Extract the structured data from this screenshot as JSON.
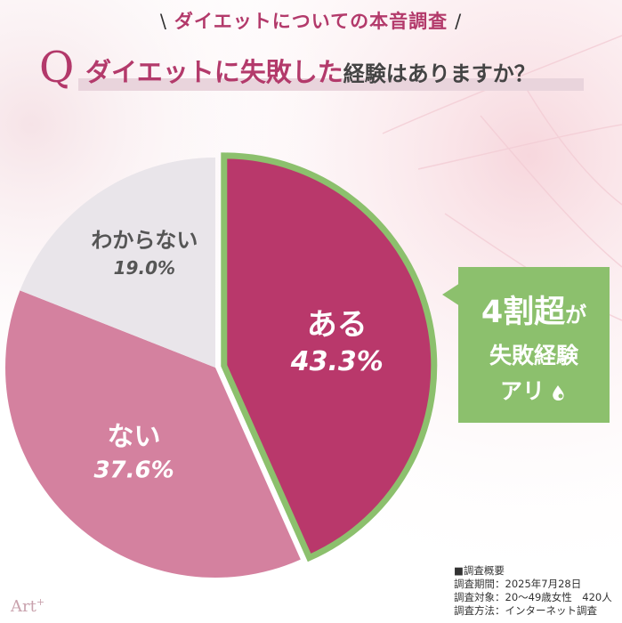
{
  "header": {
    "slash_left": "\\",
    "title": "ダイエットについての本音調査",
    "slash_right": "/"
  },
  "question": {
    "letter": "Q",
    "main": "ダイエットに失敗した",
    "sub": "経験はありますか？"
  },
  "chart_data": {
    "type": "pie",
    "slices": [
      {
        "label": "ある",
        "value": 43.3,
        "value_text": "43.3%",
        "color": "#b9386b",
        "label_color": "#ffffff"
      },
      {
        "label": "ない",
        "value": 37.6,
        "value_text": "37.6%",
        "color": "#d4819f",
        "label_color": "#ffffff"
      },
      {
        "label": "わからない",
        "value": 19.0,
        "value_text": "19.0%",
        "color": "#e9e5ea",
        "label_color": "#555555"
      }
    ],
    "start_angle_deg": 0,
    "direction": "clockwise",
    "highlight": {
      "slice": "ある",
      "outline_color": "#8cc06d"
    }
  },
  "callout": {
    "line1_main": "4割超",
    "line1_suffix": "が",
    "line2": "失敗経験",
    "line3": "アリ",
    "color": "#8cc06d"
  },
  "survey": {
    "heading": "■調査概要",
    "period": "調査期間：2025年7月28日",
    "target": "調査対象：20〜49歳女性　420人",
    "method": "調査方法：インターネット調査"
  },
  "logo": {
    "text": "Art",
    "sup": "+"
  }
}
